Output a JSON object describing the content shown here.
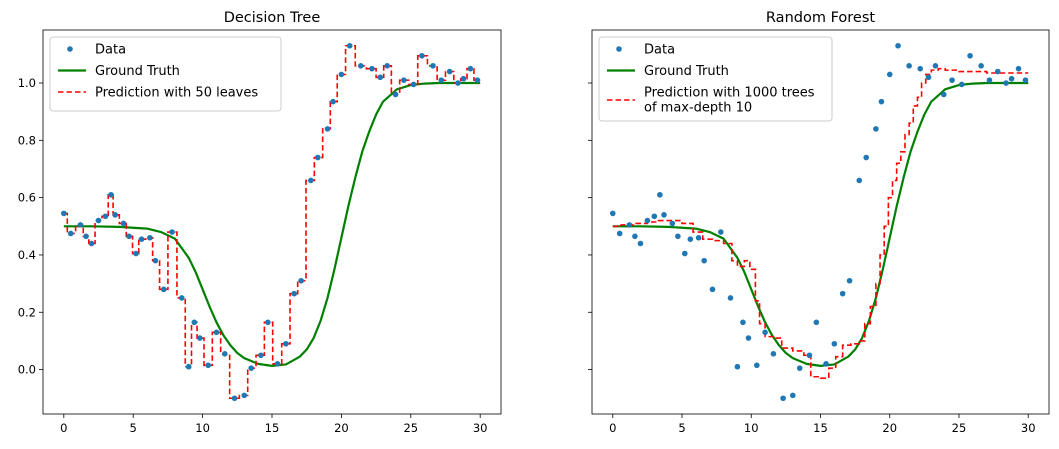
{
  "chart_data": [
    {
      "type": "scatter",
      "title": "Decision Tree",
      "xlabel": "",
      "ylabel": "",
      "xlim": [
        -1.5,
        31.5
      ],
      "ylim": [
        -0.155,
        1.185
      ],
      "xticks": [
        0,
        5,
        10,
        15,
        20,
        25,
        30
      ],
      "yticks": [
        0.0,
        0.2,
        0.4,
        0.6,
        0.8,
        1.0
      ],
      "ytick_labels": [
        "0.0",
        "0.2",
        "0.4",
        "0.6",
        "0.8",
        "1.0"
      ],
      "show_ytick_labels": true,
      "grid": false,
      "legend": "top-left",
      "series": [
        {
          "name": "Data",
          "kind": "scatter",
          "color": "#1f77b4",
          "x": [
            0,
            0.5,
            1.2,
            1.6,
            2.0,
            2.5,
            3.0,
            3.4,
            3.7,
            4.3,
            4.7,
            5.2,
            5.6,
            6.2,
            6.6,
            7.2,
            7.8,
            8.5,
            9.0,
            9.4,
            9.8,
            10.4,
            11.0,
            11.6,
            12.3,
            13.0,
            13.5,
            14.2,
            14.7,
            15.4,
            16.0,
            16.6,
            17.1,
            17.8,
            18.3,
            19.0,
            19.4,
            20.0,
            20.6,
            21.4,
            22.2,
            22.8,
            23.3,
            23.9,
            24.5,
            25.2,
            25.8,
            26.6,
            27.2,
            27.8,
            28.4,
            28.8,
            29.3,
            29.8
          ],
          "y": [
            0.545,
            0.475,
            0.505,
            0.465,
            0.44,
            0.52,
            0.535,
            0.61,
            0.54,
            0.51,
            0.465,
            0.405,
            0.455,
            0.46,
            0.38,
            0.28,
            0.48,
            0.25,
            0.01,
            0.165,
            0.11,
            0.015,
            0.13,
            0.055,
            -0.1,
            -0.09,
            0.005,
            0.05,
            0.165,
            0.02,
            0.09,
            0.265,
            0.31,
            0.66,
            0.74,
            0.84,
            0.935,
            1.03,
            1.13,
            1.06,
            1.05,
            1.02,
            1.06,
            0.96,
            1.01,
            0.995,
            1.095,
            1.06,
            1.01,
            1.04,
            1.0,
            1.015,
            1.05,
            1.01
          ]
        },
        {
          "name": "Ground Truth",
          "kind": "line",
          "color": "#008000",
          "style": "solid",
          "x": [
            0,
            2,
            4,
            6,
            7,
            8,
            9,
            9.5,
            10,
            10.5,
            11,
            11.5,
            12,
            12.5,
            13,
            14,
            15,
            16,
            17,
            17.5,
            18,
            18.5,
            19,
            19.5,
            20,
            20.5,
            21,
            21.5,
            22,
            22.5,
            23,
            24,
            25,
            26,
            27,
            28,
            30
          ],
          "y": [
            0.5,
            0.5,
            0.498,
            0.492,
            0.48,
            0.457,
            0.39,
            0.34,
            0.28,
            0.22,
            0.165,
            0.12,
            0.085,
            0.058,
            0.04,
            0.02,
            0.013,
            0.018,
            0.045,
            0.07,
            0.11,
            0.17,
            0.25,
            0.35,
            0.46,
            0.57,
            0.67,
            0.76,
            0.83,
            0.89,
            0.935,
            0.978,
            0.993,
            0.998,
            1.0,
            1.0,
            1.0
          ]
        },
        {
          "name": "Prediction with 50 leaves",
          "kind": "step",
          "color": "#ff0000",
          "style": "dashed",
          "x": [
            0,
            0.25,
            0.85,
            1.4,
            1.8,
            2.25,
            2.75,
            3.2,
            3.55,
            4.0,
            4.5,
            4.95,
            5.4,
            5.9,
            6.4,
            6.9,
            7.5,
            8.15,
            8.75,
            9.2,
            9.6,
            10.1,
            10.7,
            11.3,
            11.95,
            12.65,
            13.25,
            13.85,
            14.45,
            15.05,
            15.7,
            16.3,
            16.85,
            17.45,
            18.05,
            18.65,
            19.2,
            19.7,
            20.3,
            21.0,
            21.8,
            22.5,
            23.05,
            23.6,
            24.2,
            24.85,
            25.5,
            26.2,
            26.9,
            27.5,
            28.1,
            28.6,
            29.05,
            29.55,
            30.0
          ],
          "y": [
            0.545,
            0.475,
            0.505,
            0.465,
            0.44,
            0.52,
            0.535,
            0.61,
            0.54,
            0.51,
            0.465,
            0.405,
            0.455,
            0.46,
            0.38,
            0.28,
            0.48,
            0.25,
            0.01,
            0.165,
            0.11,
            0.015,
            0.13,
            0.055,
            -0.1,
            -0.09,
            0.005,
            0.05,
            0.165,
            0.02,
            0.09,
            0.265,
            0.31,
            0.66,
            0.74,
            0.84,
            0.935,
            1.03,
            1.13,
            1.06,
            1.05,
            1.02,
            1.06,
            0.96,
            1.01,
            0.995,
            1.095,
            1.06,
            1.01,
            1.04,
            1.0,
            1.015,
            1.05,
            1.01,
            1.01
          ]
        }
      ]
    },
    {
      "type": "scatter",
      "title": "Random Forest",
      "xlabel": "",
      "ylabel": "",
      "xlim": [
        -1.5,
        31.5
      ],
      "ylim": [
        -0.155,
        1.185
      ],
      "xticks": [
        0,
        5,
        10,
        15,
        20,
        25,
        30
      ],
      "yticks": [
        0.0,
        0.2,
        0.4,
        0.6,
        0.8,
        1.0
      ],
      "show_ytick_labels": false,
      "grid": false,
      "legend": "top-left",
      "series": [
        {
          "name": "Data",
          "kind": "scatter",
          "color": "#1f77b4",
          "x": [
            0,
            0.5,
            1.2,
            1.6,
            2.0,
            2.5,
            3.0,
            3.4,
            3.7,
            4.3,
            4.7,
            5.2,
            5.6,
            6.2,
            6.6,
            7.2,
            7.8,
            8.5,
            9.0,
            9.4,
            9.8,
            10.4,
            11.0,
            11.6,
            12.3,
            13.0,
            13.5,
            14.2,
            14.7,
            15.4,
            16.0,
            16.6,
            17.1,
            17.8,
            18.3,
            19.0,
            19.4,
            20.0,
            20.6,
            21.4,
            22.2,
            22.8,
            23.3,
            23.9,
            24.5,
            25.2,
            25.8,
            26.6,
            27.2,
            27.8,
            28.4,
            28.8,
            29.3,
            29.8
          ],
          "y": [
            0.545,
            0.475,
            0.505,
            0.465,
            0.44,
            0.52,
            0.535,
            0.61,
            0.54,
            0.51,
            0.465,
            0.405,
            0.455,
            0.46,
            0.38,
            0.28,
            0.48,
            0.25,
            0.01,
            0.165,
            0.11,
            0.015,
            0.13,
            0.055,
            -0.1,
            -0.09,
            0.005,
            0.05,
            0.165,
            0.02,
            0.09,
            0.265,
            0.31,
            0.66,
            0.74,
            0.84,
            0.935,
            1.03,
            1.13,
            1.06,
            1.05,
            1.02,
            1.06,
            0.96,
            1.01,
            0.995,
            1.095,
            1.06,
            1.01,
            1.04,
            1.0,
            1.015,
            1.05,
            1.01
          ]
        },
        {
          "name": "Ground Truth",
          "kind": "line",
          "color": "#008000",
          "style": "solid",
          "x": [
            0,
            2,
            4,
            6,
            7,
            8,
            9,
            9.5,
            10,
            10.5,
            11,
            11.5,
            12,
            12.5,
            13,
            14,
            15,
            16,
            17,
            17.5,
            18,
            18.5,
            19,
            19.5,
            20,
            20.5,
            21,
            21.5,
            22,
            22.5,
            23,
            24,
            25,
            26,
            27,
            28,
            30
          ],
          "y": [
            0.5,
            0.5,
            0.498,
            0.492,
            0.48,
            0.457,
            0.39,
            0.34,
            0.28,
            0.22,
            0.165,
            0.12,
            0.085,
            0.058,
            0.04,
            0.02,
            0.013,
            0.018,
            0.045,
            0.07,
            0.11,
            0.17,
            0.25,
            0.35,
            0.46,
            0.57,
            0.67,
            0.76,
            0.83,
            0.89,
            0.935,
            0.978,
            0.993,
            0.998,
            1.0,
            1.0,
            1.0
          ]
        },
        {
          "name": "Prediction with 1000 trees\nof max-depth 10",
          "kind": "step",
          "color": "#ff0000",
          "style": "dashed",
          "x": [
            0,
            0.6,
            1.5,
            2.5,
            3.3,
            4.2,
            5.0,
            5.8,
            6.5,
            7.2,
            8.0,
            8.6,
            9.0,
            9.5,
            9.9,
            10.3,
            10.6,
            11.0,
            11.6,
            12.2,
            13.0,
            13.8,
            14.3,
            15.0,
            15.6,
            16.1,
            16.6,
            17.2,
            17.8,
            18.2,
            18.6,
            19.0,
            19.3,
            19.6,
            19.9,
            20.2,
            20.5,
            20.8,
            21.1,
            21.4,
            21.7,
            22.0,
            22.3,
            22.6,
            23.0,
            23.5,
            24.0,
            25.0,
            26.0,
            27.0,
            28.0,
            29.0,
            30.0
          ],
          "y": [
            0.5,
            0.505,
            0.51,
            0.515,
            0.52,
            0.52,
            0.51,
            0.48,
            0.455,
            0.45,
            0.44,
            0.38,
            0.36,
            0.38,
            0.35,
            0.24,
            0.16,
            0.115,
            0.11,
            0.075,
            0.065,
            0.05,
            -0.025,
            -0.03,
            0.005,
            0.045,
            0.085,
            0.09,
            0.1,
            0.16,
            0.22,
            0.3,
            0.4,
            0.5,
            0.6,
            0.66,
            0.72,
            0.76,
            0.82,
            0.86,
            0.92,
            0.95,
            1.0,
            1.03,
            1.045,
            1.05,
            1.045,
            1.04,
            1.04,
            1.035,
            1.035,
            1.035,
            1.035
          ]
        }
      ]
    }
  ]
}
